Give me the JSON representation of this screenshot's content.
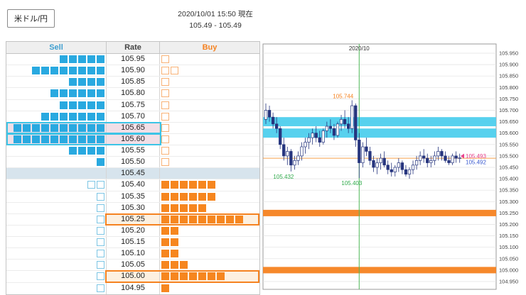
{
  "header": {
    "pair_label": "米ドル/円",
    "timestamp": "2020/10/01 15:50 現在",
    "price_range": "105.49 - 105.49"
  },
  "depth_table": {
    "columns": {
      "sell": "Sell",
      "rate": "Rate",
      "buy": "Buy"
    },
    "rows": [
      {
        "rate": "105.95",
        "sell": 5,
        "sell_o": 0,
        "buy": 0,
        "buy_o": 1
      },
      {
        "rate": "105.90",
        "sell": 8,
        "sell_o": 0,
        "buy": 0,
        "buy_o": 2
      },
      {
        "rate": "105.85",
        "sell": 4,
        "sell_o": 0,
        "buy": 0,
        "buy_o": 1
      },
      {
        "rate": "105.80",
        "sell": 6,
        "sell_o": 0,
        "buy": 0,
        "buy_o": 1
      },
      {
        "rate": "105.75",
        "sell": 5,
        "sell_o": 0,
        "buy": 0,
        "buy_o": 1
      },
      {
        "rate": "105.70",
        "sell": 7,
        "sell_o": 0,
        "buy": 0,
        "buy_o": 1
      },
      {
        "rate": "105.65",
        "sell": 10,
        "sell_o": 0,
        "buy": 0,
        "buy_o": 1,
        "hl": "sell"
      },
      {
        "rate": "105.60",
        "sell": 10,
        "sell_o": 0,
        "buy": 0,
        "buy_o": 1,
        "hl": "sell"
      },
      {
        "rate": "105.55",
        "sell": 4,
        "sell_o": 0,
        "buy": 0,
        "buy_o": 1
      },
      {
        "rate": "105.50",
        "sell": 1,
        "sell_o": 0,
        "buy": 0,
        "buy_o": 1
      },
      {
        "rate": "105.45",
        "sell": 0,
        "sell_o": 0,
        "buy": 0,
        "buy_o": 0,
        "mid": true
      },
      {
        "rate": "105.40",
        "sell": 0,
        "sell_o": 2,
        "buy": 6,
        "buy_o": 0
      },
      {
        "rate": "105.35",
        "sell": 0,
        "sell_o": 1,
        "buy": 6,
        "buy_o": 0
      },
      {
        "rate": "105.30",
        "sell": 0,
        "sell_o": 1,
        "buy": 5,
        "buy_o": 0
      },
      {
        "rate": "105.25",
        "sell": 0,
        "sell_o": 1,
        "buy": 9,
        "buy_o": 0,
        "hl": "buy"
      },
      {
        "rate": "105.20",
        "sell": 0,
        "sell_o": 1,
        "buy": 2,
        "buy_o": 0
      },
      {
        "rate": "105.15",
        "sell": 0,
        "sell_o": 1,
        "buy": 2,
        "buy_o": 0
      },
      {
        "rate": "105.10",
        "sell": 0,
        "sell_o": 1,
        "buy": 2,
        "buy_o": 0
      },
      {
        "rate": "105.05",
        "sell": 0,
        "sell_o": 1,
        "buy": 3,
        "buy_o": 0
      },
      {
        "rate": "105.00",
        "sell": 0,
        "sell_o": 1,
        "buy": 7,
        "buy_o": 0,
        "hl": "buy"
      },
      {
        "rate": "104.95",
        "sell": 0,
        "sell_o": 1,
        "buy": 1,
        "buy_o": 0
      }
    ],
    "colors": {
      "sell": "#29a9e0",
      "buy": "#f6861f",
      "sell_highlight": "#3cc4e6",
      "buy_highlight": "#f58220",
      "mid_row": "#d7e4ed"
    }
  },
  "chart_data": {
    "type": "candlestick",
    "title": "2020/10",
    "y_min": 104.95,
    "y_max": 105.95,
    "y_step": 0.05,
    "y_tick_labels": [
      "105.950",
      "105.900",
      "105.850",
      "105.800",
      "105.750",
      "105.700",
      "105.650",
      "105.600",
      "105.550",
      "105.500",
      "105.450",
      "105.400",
      "105.350",
      "105.300",
      "105.250",
      "105.200",
      "105.150",
      "105.100",
      "105.050",
      "105.000",
      "104.950"
    ],
    "grid": true,
    "legend": false,
    "candle_color": "#26357e",
    "bands": [
      {
        "from": 105.63,
        "to": 105.67,
        "color": "#4ecfed"
      },
      {
        "from": 105.58,
        "to": 105.62,
        "color": "#4ecfed"
      },
      {
        "from": 105.236,
        "to": 105.264,
        "color": "#f58220"
      },
      {
        "from": 104.986,
        "to": 105.014,
        "color": "#f58220"
      }
    ],
    "price_line": {
      "value": 105.49,
      "color": "#f5a04c"
    },
    "vline": {
      "candle_index": 26,
      "color": "#4db857",
      "label": "2020/10"
    },
    "annotations": [
      {
        "text": "105.744",
        "candle_index": 24,
        "price": 105.744,
        "pos": "above",
        "color": "#f58220"
      },
      {
        "text": "105.432",
        "candle_index": 7,
        "price": 105.432,
        "pos": "below",
        "color": "#2faa4a"
      },
      {
        "text": "105.403",
        "candle_index": 26,
        "price": 105.403,
        "pos": "below",
        "color": "#2faa4a"
      }
    ],
    "price_markers": [
      {
        "text": "105.493",
        "price": 105.493,
        "color": "#e8418c",
        "arrow": true
      },
      {
        "text": "105.492",
        "price": 105.492,
        "color": "#3b5bd0",
        "arrow": false
      }
    ],
    "candles": [
      [
        105.66,
        105.73,
        105.64,
        105.7
      ],
      [
        105.7,
        105.72,
        105.65,
        105.67
      ],
      [
        105.67,
        105.69,
        105.62,
        105.64
      ],
      [
        105.64,
        105.67,
        105.6,
        105.62
      ],
      [
        105.62,
        105.63,
        105.53,
        105.55
      ],
      [
        105.55,
        105.58,
        105.48,
        105.5
      ],
      [
        105.5,
        105.54,
        105.46,
        105.52
      ],
      [
        105.52,
        105.53,
        105.432,
        105.46
      ],
      [
        105.46,
        105.5,
        105.44,
        105.48
      ],
      [
        105.48,
        105.52,
        105.46,
        105.5
      ],
      [
        105.5,
        105.56,
        105.48,
        105.54
      ],
      [
        105.54,
        105.58,
        105.51,
        105.56
      ],
      [
        105.56,
        105.6,
        105.53,
        105.58
      ],
      [
        105.58,
        105.62,
        105.55,
        105.6
      ],
      [
        105.6,
        105.63,
        105.56,
        105.58
      ],
      [
        105.58,
        105.61,
        105.54,
        105.56
      ],
      [
        105.56,
        105.62,
        105.55,
        105.61
      ],
      [
        105.61,
        105.65,
        105.58,
        105.63
      ],
      [
        105.63,
        105.66,
        105.6,
        105.62
      ],
      [
        105.62,
        105.64,
        105.57,
        105.59
      ],
      [
        105.59,
        105.65,
        105.58,
        105.64
      ],
      [
        105.64,
        105.68,
        105.61,
        105.66
      ],
      [
        105.66,
        105.7,
        105.62,
        105.64
      ],
      [
        105.64,
        105.67,
        105.6,
        105.62
      ],
      [
        105.62,
        105.744,
        105.6,
        105.72
      ],
      [
        105.72,
        105.73,
        105.54,
        105.57
      ],
      [
        105.57,
        105.6,
        105.403,
        105.47
      ],
      [
        105.47,
        105.56,
        105.45,
        105.54
      ],
      [
        105.54,
        105.58,
        105.5,
        105.52
      ],
      [
        105.52,
        105.54,
        105.46,
        105.48
      ],
      [
        105.48,
        105.5,
        105.43,
        105.45
      ],
      [
        105.45,
        105.49,
        105.42,
        105.47
      ],
      [
        105.47,
        105.51,
        105.44,
        105.49
      ],
      [
        105.49,
        105.52,
        105.45,
        105.46
      ],
      [
        105.46,
        105.48,
        105.42,
        105.44
      ],
      [
        105.44,
        105.47,
        105.41,
        105.43
      ],
      [
        105.43,
        105.46,
        105.41,
        105.45
      ],
      [
        105.45,
        105.49,
        105.43,
        105.47
      ],
      [
        105.47,
        105.48,
        105.42,
        105.44
      ],
      [
        105.44,
        105.46,
        105.41,
        105.42
      ],
      [
        105.42,
        105.45,
        105.4,
        105.44
      ],
      [
        105.44,
        105.48,
        105.42,
        105.46
      ],
      [
        105.46,
        105.5,
        105.44,
        105.48
      ],
      [
        105.48,
        105.52,
        105.46,
        105.5
      ],
      [
        105.5,
        105.53,
        105.47,
        105.49
      ],
      [
        105.49,
        105.51,
        105.45,
        105.47
      ],
      [
        105.47,
        105.5,
        105.45,
        105.48
      ],
      [
        105.48,
        105.52,
        105.46,
        105.5
      ],
      [
        105.5,
        105.54,
        105.48,
        105.52
      ],
      [
        105.52,
        105.53,
        105.48,
        105.5
      ],
      [
        105.5,
        105.52,
        105.47,
        105.48
      ],
      [
        105.48,
        105.5,
        105.46,
        105.47
      ],
      [
        105.47,
        105.51,
        105.46,
        105.5
      ],
      [
        105.5,
        105.52,
        105.47,
        105.49
      ],
      [
        105.49,
        105.51,
        105.47,
        105.492
      ]
    ]
  }
}
